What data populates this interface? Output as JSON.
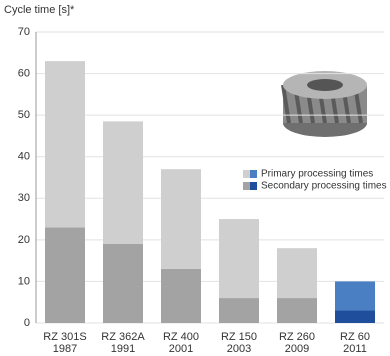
{
  "chart_data": {
    "type": "stacked-bar",
    "y_label": "Cycle time [s]*",
    "categories": [
      [
        "RZ 301S",
        "1987"
      ],
      [
        "RZ 362A",
        "1991"
      ],
      [
        "RZ 400",
        "2001"
      ],
      [
        "RZ 150",
        "2003"
      ],
      [
        "RZ 260",
        "2009"
      ],
      [
        "RZ 60",
        "2011"
      ]
    ],
    "series": [
      {
        "name": "Secondary processing times",
        "colors": [
          "#a3a3a3",
          "#a3a3a3",
          "#a3a3a3",
          "#a3a3a3",
          "#a3a3a3",
          "#1f4e9c"
        ],
        "values": [
          23,
          19,
          13,
          6,
          6,
          3
        ]
      },
      {
        "name": "Primary processing times",
        "colors": [
          "#cfcfcf",
          "#cfcfcf",
          "#cfcfcf",
          "#cfcfcf",
          "#cfcfcf",
          "#4a7fc4"
        ],
        "values": [
          40,
          29.5,
          24,
          19,
          12,
          7
        ]
      }
    ],
    "ylim": [
      0,
      70
    ],
    "yticks": [
      0,
      10,
      20,
      30,
      40,
      50,
      60,
      70
    ],
    "grid": true
  }
}
